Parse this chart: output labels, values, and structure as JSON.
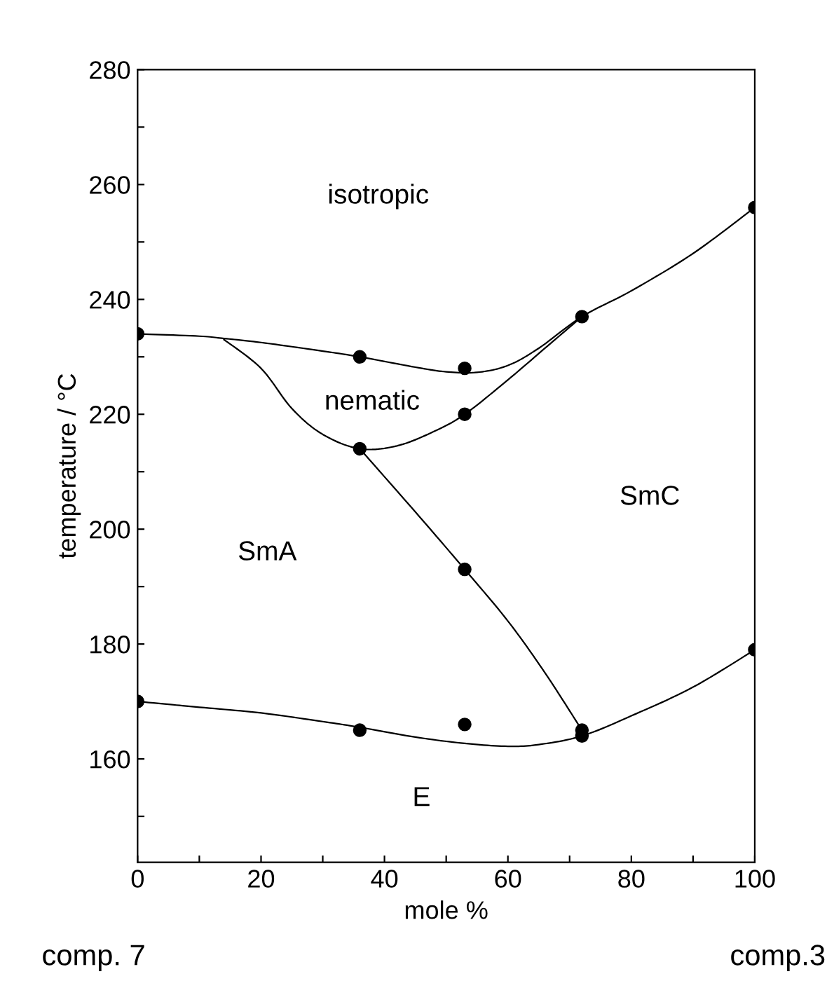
{
  "chart_data": {
    "type": "line",
    "xlabel": "mole %",
    "ylabel": "temperature / °C",
    "xlim": [
      0,
      100
    ],
    "ylim": [
      142,
      280
    ],
    "xticks": [
      0,
      {
        "value": 10,
        "label": null
      },
      20,
      {
        "value": 30,
        "label": null
      },
      40,
      {
        "value": 50,
        "label": null
      },
      60,
      {
        "value": 70,
        "label": null
      },
      80,
      {
        "value": 90,
        "label": null
      },
      100
    ],
    "yticks": [
      {
        "value": 150,
        "label": null
      },
      160,
      {
        "value": 170,
        "label": null
      },
      180,
      {
        "value": 190,
        "label": null
      },
      200,
      {
        "value": 210,
        "label": null
      },
      220,
      {
        "value": 230,
        "label": null
      },
      240,
      {
        "value": 250,
        "label": null
      },
      260,
      {
        "value": 270,
        "label": null
      },
      280
    ],
    "grid": false,
    "legend": false,
    "series": [
      {
        "color": "#000000",
        "marker": "none",
        "x": [
          0,
          10,
          14,
          20,
          30,
          36,
          45,
          50,
          55,
          60,
          65,
          72,
          80,
          90,
          100
        ],
        "values": [
          234,
          233.6,
          233.2,
          232.5,
          231,
          230,
          228.2,
          227.4,
          227.3,
          228.5,
          231.5,
          237,
          241.5,
          248,
          256
        ]
      },
      {
        "color": "#000000",
        "marker": "none",
        "x": [
          14,
          20,
          25,
          30,
          36,
          42,
          48,
          53,
          60,
          66,
          72
        ],
        "values": [
          233,
          228,
          221,
          216.5,
          214,
          214.5,
          217,
          220,
          226,
          231.5,
          237
        ]
      },
      {
        "color": "#000000",
        "marker": "none",
        "x": [
          36,
          45,
          53,
          60,
          66,
          72
        ],
        "values": [
          214,
          203,
          193,
          184,
          175,
          165
        ]
      },
      {
        "color": "#000000",
        "marker": "none",
        "x": [
          0,
          10,
          20,
          30,
          36,
          45,
          53,
          60,
          65,
          72,
          80,
          90,
          100
        ],
        "values": [
          170,
          169,
          168,
          166.5,
          165.5,
          163.8,
          162.7,
          162.2,
          162.5,
          164,
          167.5,
          172.5,
          179
        ]
      },
      {
        "type": "scatter",
        "color": "#000000",
        "marker": "circle",
        "x": [
          0,
          36,
          53,
          72,
          100,
          36,
          53,
          53,
          72,
          72,
          100,
          0,
          36,
          53
        ],
        "values": [
          234,
          230,
          228,
          237,
          256,
          214,
          220,
          193,
          165,
          164,
          179,
          170,
          165,
          166
        ]
      }
    ],
    "annotations": [
      "isotropic",
      "nematic",
      "SmA",
      "SmC",
      "E",
      "comp. 7",
      "comp.3"
    ]
  }
}
